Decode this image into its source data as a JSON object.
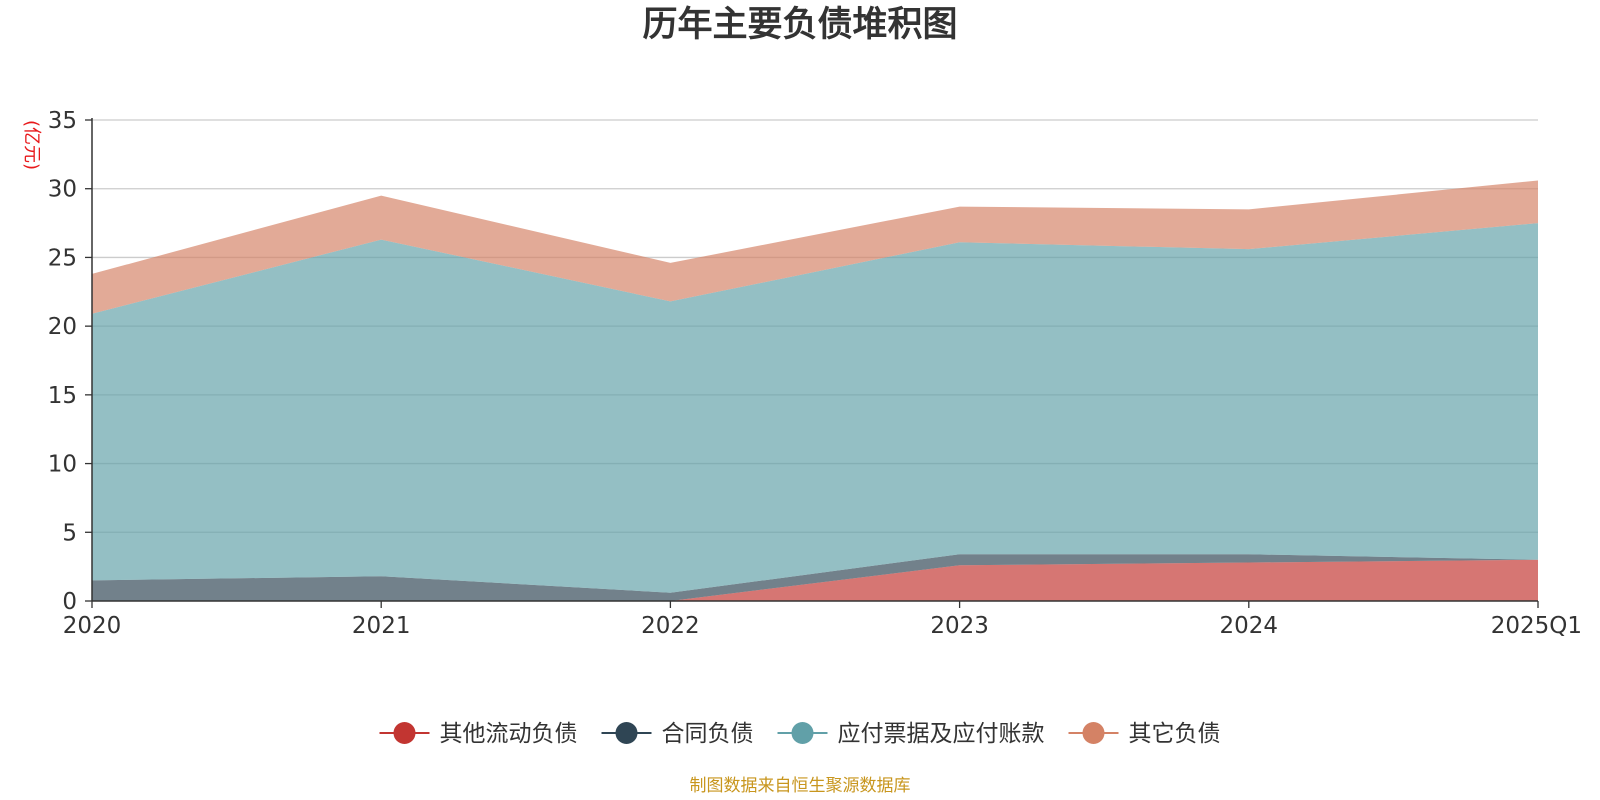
{
  "chart_data": {
    "type": "area",
    "stacked": true,
    "title": "历年主要负债堆积图",
    "unit_label": "(亿元)",
    "categories": [
      "2020",
      "2021",
      "2022",
      "2023",
      "2024",
      "2025Q1"
    ],
    "ylim": [
      0,
      35
    ],
    "yticks": [
      0,
      5,
      10,
      15,
      20,
      25,
      30,
      35
    ],
    "grid": true,
    "legend_position": "bottom-center",
    "series": [
      {
        "name": "其他流动负债",
        "color": "#c23531",
        "values": [
          0.0,
          0.0,
          0.0,
          2.6,
          2.8,
          3.0
        ]
      },
      {
        "name": "合同负债",
        "color": "#2f4554",
        "values": [
          1.5,
          1.8,
          0.6,
          0.8,
          0.6,
          0.0
        ]
      },
      {
        "name": "应付票据及应付账款",
        "color": "#61a0a8",
        "values": [
          19.4,
          24.5,
          21.2,
          22.7,
          22.2,
          24.5
        ]
      },
      {
        "name": "其它负债",
        "color": "#d48265",
        "values": [
          2.9,
          3.2,
          2.8,
          2.6,
          2.9,
          3.1
        ]
      }
    ],
    "source_text": "制图数据来自恒生聚源数据库",
    "source_color": "#c8961e"
  }
}
